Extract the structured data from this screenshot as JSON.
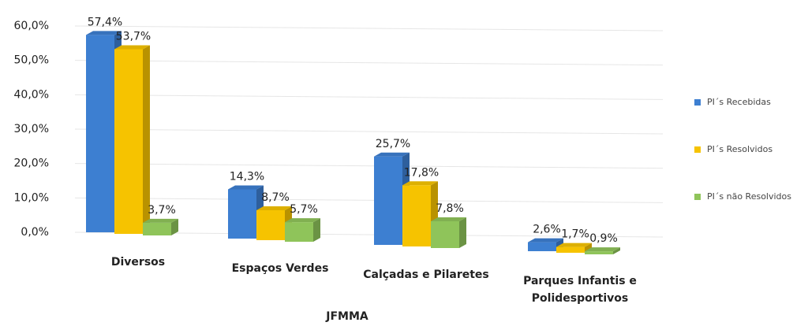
{
  "chart_data": {
    "type": "bar3d",
    "xlabel": "JFMMA",
    "categories": [
      "Diversos",
      "Espaços Verdes",
      "Calçadas e Pilaretes",
      "Parques Infantis e Polidesportivos"
    ],
    "series": [
      {
        "name": "PI´s Recebidas",
        "color": "#3d7fd1",
        "values": [
          57.4,
          14.3,
          25.7,
          2.6
        ],
        "value_labels": [
          "57,4%",
          "14,3%",
          "25,7%",
          "2,6%"
        ]
      },
      {
        "name": "PI´s Resolvidos",
        "color": "#f6c300",
        "values": [
          53.7,
          8.7,
          17.8,
          1.7
        ],
        "value_labels": [
          "53,7%",
          "8,7%",
          "17,8%",
          "1,7%"
        ]
      },
      {
        "name": "PI´s não Resolvidos",
        "color": "#8fc45a",
        "values": [
          3.7,
          5.7,
          7.8,
          0.9
        ],
        "value_labels": [
          "3,7%",
          "5,7%",
          "7,8%",
          "0,9%"
        ]
      }
    ],
    "ylim": [
      0,
      60
    ],
    "yticks": [
      {
        "value": 0,
        "label": "0,0%"
      },
      {
        "value": 10,
        "label": "10,0%"
      },
      {
        "value": 20,
        "label": "20,0%"
      },
      {
        "value": 30,
        "label": "30,0%"
      },
      {
        "value": 40,
        "label": "40,0%"
      },
      {
        "value": 50,
        "label": "50,0%"
      },
      {
        "value": 60,
        "label": "60,0%"
      }
    ],
    "grid": true,
    "legend": "right"
  }
}
